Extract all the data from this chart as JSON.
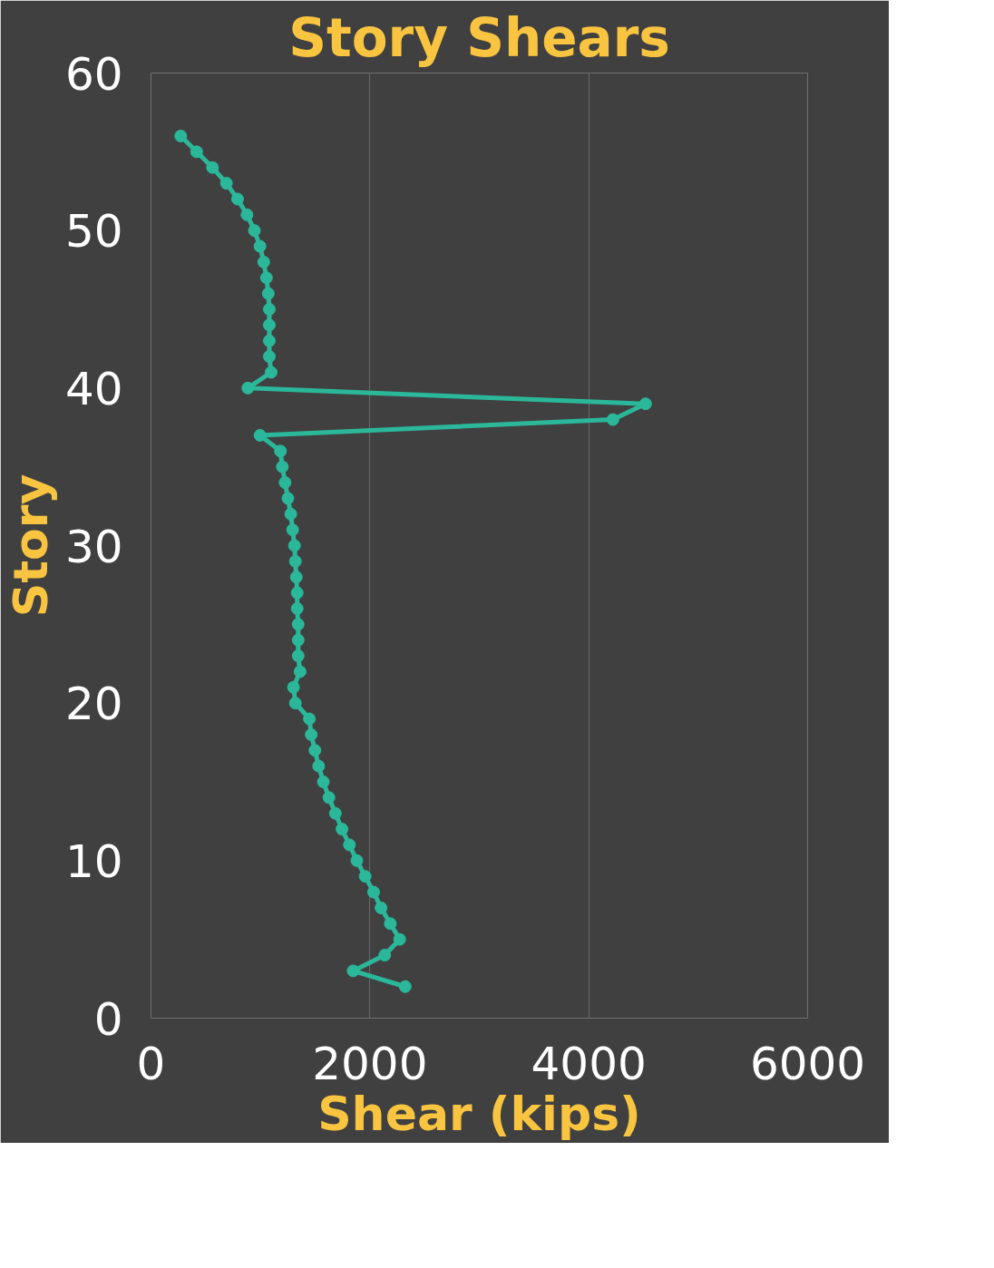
{
  "chart_data": {
    "type": "line",
    "title": "Story Shears",
    "xlabel": "Shear (kips)",
    "ylabel": "Story",
    "series": [
      {
        "color": "#2bb89a",
        "x": [
          272,
          417,
          562,
          689,
          791,
          877,
          945,
          996,
          1030,
          1055,
          1072,
          1081,
          1081,
          1081,
          1081,
          1098,
          885,
          4519,
          4221,
          996,
          1183,
          1200,
          1225,
          1251,
          1277,
          1294,
          1311,
          1319,
          1328,
          1336,
          1336,
          1345,
          1345,
          1345,
          1362,
          1302,
          1319,
          1447,
          1464,
          1498,
          1532,
          1575,
          1626,
          1685,
          1745,
          1813,
          1881,
          1957,
          2034,
          2102,
          2187,
          2272,
          2136,
          1847,
          2323
        ],
        "values": [
          56,
          55,
          54,
          53,
          52,
          51,
          50,
          49,
          48,
          47,
          46,
          45,
          44,
          43,
          42,
          41,
          40,
          39,
          38,
          37,
          36,
          35,
          34,
          33,
          32,
          31,
          30,
          29,
          28,
          27,
          26,
          25,
          24,
          23,
          22,
          21,
          20,
          19,
          18,
          17,
          16,
          15,
          14,
          13,
          12,
          11,
          10,
          9,
          8,
          7,
          6,
          5,
          4,
          3,
          2
        ]
      }
    ],
    "xlim": [
      0,
      6000
    ],
    "xticks": [
      0,
      2000,
      4000,
      6000
    ],
    "ylim": [
      0,
      60
    ],
    "yticks": [
      0,
      10,
      20,
      30,
      40,
      50,
      60
    ],
    "grid": "x",
    "marker": "circle",
    "line_style": "solid"
  }
}
